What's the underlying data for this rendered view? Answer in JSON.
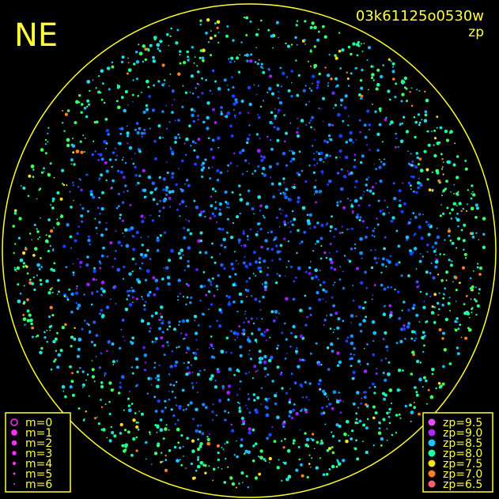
{
  "header": {
    "direction": "NE",
    "image_id": "03k61125o0530w",
    "mode": "zp"
  },
  "magnitude_legend": [
    "m=0",
    "m=1",
    "m=2",
    "m=3",
    "m=4",
    "m=5",
    "m=6"
  ],
  "zp_legend": [
    {
      "label": "zp=9.5",
      "color": "#e84cff"
    },
    {
      "label": "zp=9.0",
      "color": "#b028ff"
    },
    {
      "label": "zp=8.5",
      "color": "#18c8ff"
    },
    {
      "label": "zp=8.0",
      "color": "#20ffa0"
    },
    {
      "label": "zp=7.5",
      "color": "#ffe020"
    },
    {
      "label": "zp=7.0",
      "color": "#ff8020"
    },
    {
      "label": "zp=6.5",
      "color": "#ff6070"
    }
  ]
}
